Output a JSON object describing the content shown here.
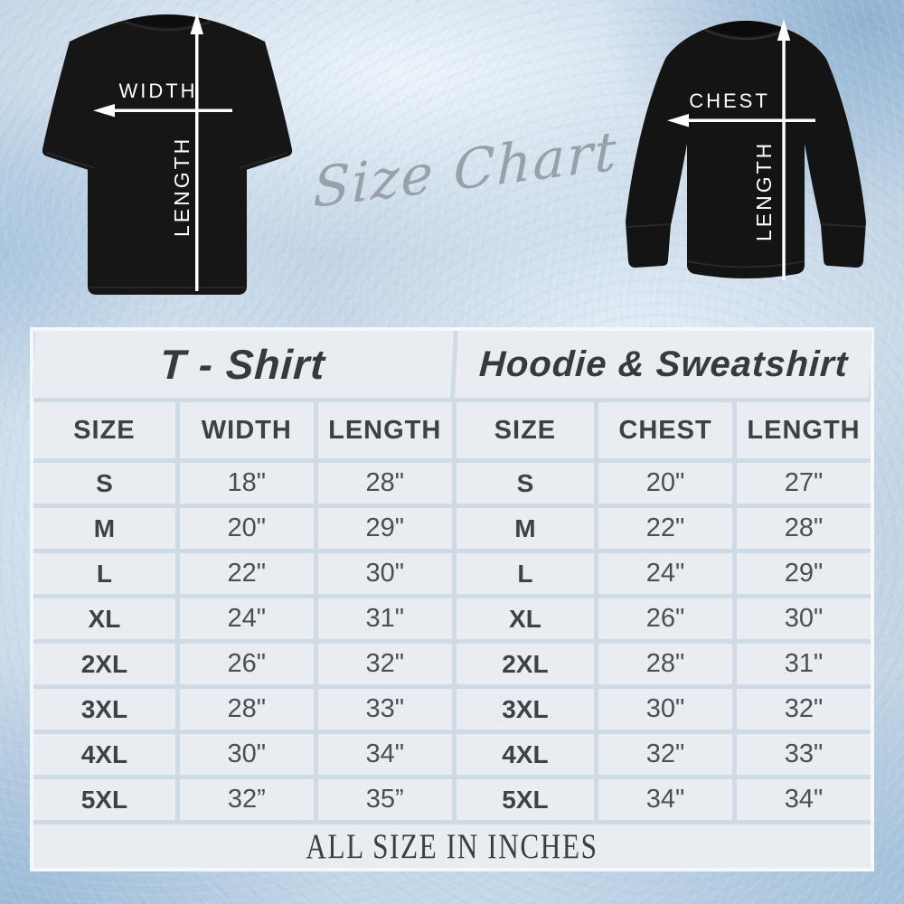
{
  "hero": {
    "script_title": "Size Chart",
    "tshirt_diagram": {
      "width_label": "WIDTH",
      "length_label": "LENGTH"
    },
    "hoodie_diagram": {
      "chest_label": "CHEST",
      "length_label": "LENGTH"
    }
  },
  "table": {
    "left": {
      "title": "T - Shirt",
      "headers": [
        "SIZE",
        "WIDTH",
        "LENGTH"
      ],
      "rows": [
        [
          "S",
          "18\"",
          "28\""
        ],
        [
          "M",
          "20\"",
          "29\""
        ],
        [
          "L",
          "22\"",
          "30\""
        ],
        [
          "XL",
          "24\"",
          "31\""
        ],
        [
          "2XL",
          "26\"",
          "32\""
        ],
        [
          "3XL",
          "28\"",
          "33\""
        ],
        [
          "4XL",
          "30\"",
          "34\""
        ],
        [
          "5XL",
          "32”",
          "35”"
        ]
      ]
    },
    "right": {
      "title": "Hoodie & Sweatshirt",
      "headers": [
        "SIZE",
        "CHEST",
        "LENGTH"
      ],
      "rows": [
        [
          "S",
          "20\"",
          "27\""
        ],
        [
          "M",
          "22\"",
          "28\""
        ],
        [
          "L",
          "24\"",
          "29\""
        ],
        [
          "XL",
          "26\"",
          "30\""
        ],
        [
          "2XL",
          "28\"",
          "31\""
        ],
        [
          "3XL",
          "30\"",
          "32\""
        ],
        [
          "4XL",
          "32\"",
          "33\""
        ],
        [
          "5XL",
          "34\"",
          "34\""
        ]
      ]
    },
    "footer_note": "ALL SIZE IN INCHES"
  },
  "colors": {
    "background_blue": "#c3d5e6",
    "corner_blue": "#8fb2d1",
    "cell_background": "#e9edf2",
    "grid_gap": "#cfdae7",
    "panel_frame": "#f6f9fc",
    "dark_text": "#3d4045",
    "value_text": "#4b4f55",
    "script_gray": "#99a0a8",
    "garment_black": "#161616",
    "arrow_white": "#ffffff"
  },
  "chart_data": [
    {
      "type": "table",
      "title": "T - Shirt",
      "columns": [
        "SIZE",
        "WIDTH",
        "LENGTH"
      ],
      "rows": [
        [
          "S",
          "18\"",
          "28\""
        ],
        [
          "M",
          "20\"",
          "29\""
        ],
        [
          "L",
          "22\"",
          "30\""
        ],
        [
          "XL",
          "24\"",
          "31\""
        ],
        [
          "2XL",
          "26\"",
          "32\""
        ],
        [
          "3XL",
          "28\"",
          "33\""
        ],
        [
          "4XL",
          "30\"",
          "34\""
        ],
        [
          "5XL",
          "32”",
          "35”"
        ]
      ],
      "note": "ALL SIZE IN INCHES"
    },
    {
      "type": "table",
      "title": "Hoodie & Sweatshirt",
      "columns": [
        "SIZE",
        "CHEST",
        "LENGTH"
      ],
      "rows": [
        [
          "S",
          "20\"",
          "27\""
        ],
        [
          "M",
          "22\"",
          "28\""
        ],
        [
          "L",
          "24\"",
          "29\""
        ],
        [
          "XL",
          "26\"",
          "30\""
        ],
        [
          "2XL",
          "28\"",
          "31\""
        ],
        [
          "3XL",
          "30\"",
          "32\""
        ],
        [
          "4XL",
          "32\"",
          "33\""
        ],
        [
          "5XL",
          "34\"",
          "34\""
        ]
      ],
      "note": "ALL SIZE IN INCHES"
    }
  ]
}
